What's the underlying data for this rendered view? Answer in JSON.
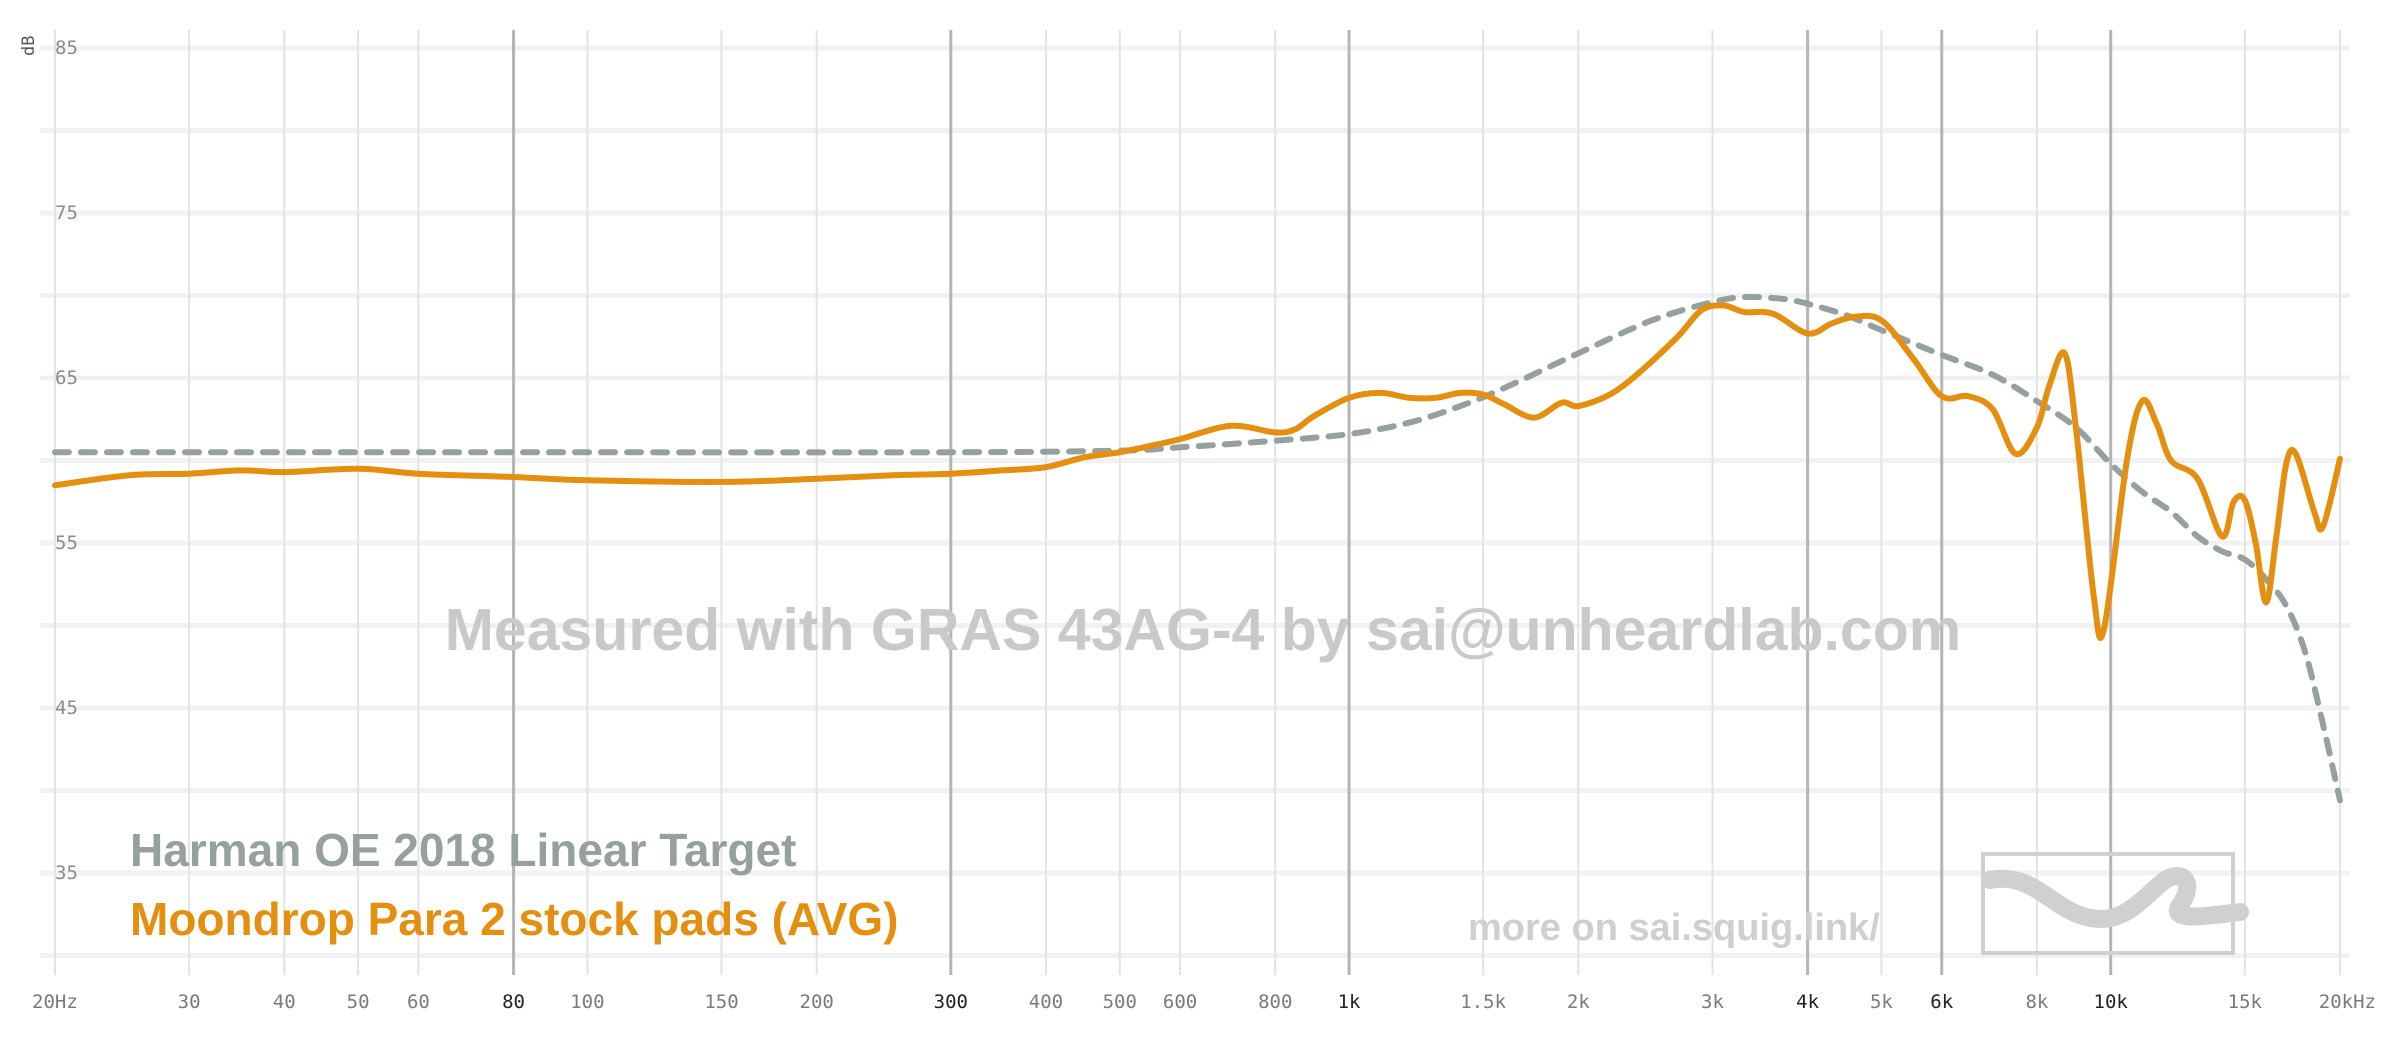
{
  "chart_data": {
    "type": "line",
    "title": "",
    "y_unit_label": "dB",
    "x_scale": "log",
    "xlim": [
      20,
      20000
    ],
    "ylim": [
      30,
      86
    ],
    "grid": true,
    "x_ticks": [
      {
        "value": 20,
        "label": "20Hz",
        "major": false
      },
      {
        "value": 30,
        "label": "30",
        "major": false
      },
      {
        "value": 40,
        "label": "40",
        "major": false
      },
      {
        "value": 50,
        "label": "50",
        "major": false
      },
      {
        "value": 60,
        "label": "60",
        "major": false
      },
      {
        "value": 80,
        "label": "80",
        "major": true
      },
      {
        "value": 100,
        "label": "100",
        "major": false
      },
      {
        "value": 150,
        "label": "150",
        "major": false
      },
      {
        "value": 200,
        "label": "200",
        "major": false
      },
      {
        "value": 300,
        "label": "300",
        "major": true
      },
      {
        "value": 400,
        "label": "400",
        "major": false
      },
      {
        "value": 500,
        "label": "500",
        "major": false
      },
      {
        "value": 600,
        "label": "600",
        "major": false
      },
      {
        "value": 800,
        "label": "800",
        "major": false
      },
      {
        "value": 1000,
        "label": "1k",
        "major": true
      },
      {
        "value": 1500,
        "label": "1.5k",
        "major": false
      },
      {
        "value": 2000,
        "label": "2k",
        "major": false
      },
      {
        "value": 3000,
        "label": "3k",
        "major": false
      },
      {
        "value": 4000,
        "label": "4k",
        "major": true
      },
      {
        "value": 5000,
        "label": "5k",
        "major": false
      },
      {
        "value": 6000,
        "label": "6k",
        "major": true
      },
      {
        "value": 8000,
        "label": "8k",
        "major": false
      },
      {
        "value": 10000,
        "label": "10k",
        "major": true
      },
      {
        "value": 15000,
        "label": "15k",
        "major": false
      },
      {
        "value": 20000,
        "label": "20kHz",
        "major": false
      }
    ],
    "y_ticks": [
      {
        "value": 85,
        "label": "85"
      },
      {
        "value": 75,
        "label": "75"
      },
      {
        "value": 65,
        "label": "65"
      },
      {
        "value": 55,
        "label": "55"
      },
      {
        "value": 45,
        "label": "45"
      },
      {
        "value": 35,
        "label": "35"
      }
    ],
    "y_grid_values": [
      85,
      80,
      75,
      70,
      65,
      60,
      55,
      50,
      45,
      40,
      35,
      30
    ],
    "series": [
      {
        "name": "Harman OE 2018 Linear Target",
        "color": "#95a19f",
        "dashed": true,
        "points": [
          [
            20,
            60.5
          ],
          [
            100,
            60.5
          ],
          [
            300,
            60.5
          ],
          [
            500,
            60.6
          ],
          [
            600,
            60.8
          ],
          [
            800,
            61.2
          ],
          [
            1000,
            61.6
          ],
          [
            1200,
            62.3
          ],
          [
            1400,
            63.3
          ],
          [
            1600,
            64.4
          ],
          [
            2000,
            66.5
          ],
          [
            2500,
            68.5
          ],
          [
            3000,
            69.6
          ],
          [
            3300,
            69.9
          ],
          [
            3700,
            69.8
          ],
          [
            4000,
            69.5
          ],
          [
            4500,
            68.8
          ],
          [
            5000,
            67.9
          ],
          [
            6000,
            66.4
          ],
          [
            7000,
            65.2
          ],
          [
            8000,
            63.6
          ],
          [
            9000,
            62.0
          ],
          [
            10000,
            59.8
          ],
          [
            11000,
            58.1
          ],
          [
            12000,
            56.9
          ],
          [
            13000,
            55.4
          ],
          [
            14000,
            54.5
          ],
          [
            15000,
            54.0
          ],
          [
            16000,
            52.8
          ],
          [
            17000,
            51.2
          ],
          [
            18000,
            48.4
          ],
          [
            19000,
            44.0
          ],
          [
            20000,
            39.4
          ]
        ]
      },
      {
        "name": "Moondrop Para 2 stock pads (AVG)",
        "color": "#e48f0f",
        "dashed": false,
        "points": [
          [
            20,
            58.5
          ],
          [
            25,
            59.1
          ],
          [
            30,
            59.2
          ],
          [
            35,
            59.4
          ],
          [
            40,
            59.3
          ],
          [
            50,
            59.5
          ],
          [
            60,
            59.2
          ],
          [
            80,
            59.0
          ],
          [
            100,
            58.8
          ],
          [
            150,
            58.7
          ],
          [
            200,
            58.9
          ],
          [
            250,
            59.1
          ],
          [
            300,
            59.2
          ],
          [
            350,
            59.4
          ],
          [
            400,
            59.6
          ],
          [
            450,
            60.2
          ],
          [
            500,
            60.5
          ],
          [
            550,
            60.9
          ],
          [
            600,
            61.3
          ],
          [
            700,
            62.1
          ],
          [
            800,
            61.7
          ],
          [
            850,
            61.9
          ],
          [
            900,
            62.7
          ],
          [
            1000,
            63.8
          ],
          [
            1100,
            64.1
          ],
          [
            1200,
            63.8
          ],
          [
            1300,
            63.8
          ],
          [
            1400,
            64.1
          ],
          [
            1500,
            64.0
          ],
          [
            1600,
            63.4
          ],
          [
            1750,
            62.6
          ],
          [
            1900,
            63.5
          ],
          [
            2000,
            63.3
          ],
          [
            2200,
            64.0
          ],
          [
            2400,
            65.3
          ],
          [
            2700,
            67.5
          ],
          [
            2900,
            69.1
          ],
          [
            3100,
            69.4
          ],
          [
            3300,
            69.0
          ],
          [
            3600,
            68.9
          ],
          [
            4000,
            67.7
          ],
          [
            4300,
            68.3
          ],
          [
            4600,
            68.7
          ],
          [
            5000,
            68.5
          ],
          [
            5500,
            66.2
          ],
          [
            6000,
            63.9
          ],
          [
            6500,
            63.9
          ],
          [
            7000,
            63.1
          ],
          [
            7500,
            60.4
          ],
          [
            8000,
            62.0
          ],
          [
            8300,
            64.5
          ],
          [
            8700,
            66.5
          ],
          [
            9000,
            62.0
          ],
          [
            9500,
            51.8
          ],
          [
            9800,
            49.8
          ],
          [
            10500,
            60.0
          ],
          [
            11000,
            63.6
          ],
          [
            11500,
            62.2
          ],
          [
            12000,
            60.0
          ],
          [
            13000,
            58.9
          ],
          [
            14000,
            55.4
          ],
          [
            14500,
            57.5
          ],
          [
            15000,
            57.6
          ],
          [
            15500,
            55.0
          ],
          [
            16000,
            51.4
          ],
          [
            16500,
            55.4
          ],
          [
            17000,
            59.8
          ],
          [
            17500,
            60.4
          ],
          [
            18500,
            56.9
          ],
          [
            19000,
            56.0
          ],
          [
            20000,
            60.1
          ]
        ]
      }
    ],
    "legend_position": "bottom-left"
  },
  "watermark": "Measured with GRAS 43AG-4 by sai@unheardlab.com",
  "site_link": "more on sai.squig.link/",
  "logo_icon": "squiglink-squiggle-logo-icon"
}
